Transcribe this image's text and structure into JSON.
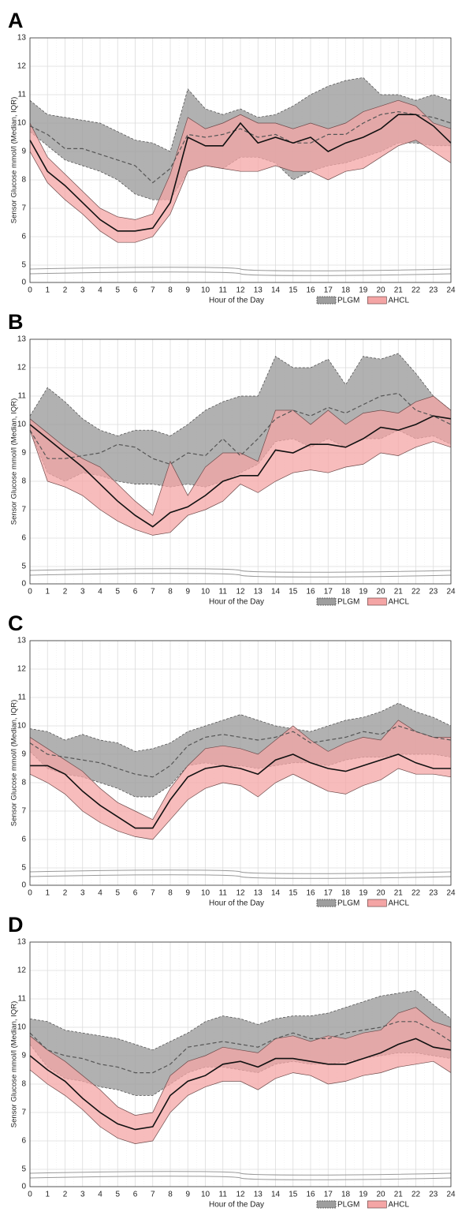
{
  "chart_data": [
    {
      "type": "line",
      "title": "A",
      "xlabel": "Hour of the Day",
      "ylabel": "Sensor Glucose mmol/l (Median, IQR)",
      "x": [
        0,
        1,
        2,
        3,
        4,
        5,
        6,
        7,
        8,
        9,
        10,
        11,
        12,
        13,
        14,
        15,
        16,
        17,
        18,
        19,
        20,
        21,
        22,
        23,
        24
      ],
      "xlim": [
        0,
        24
      ],
      "xticks": [
        0,
        1,
        2,
        3,
        4,
        5,
        6,
        7,
        8,
        9,
        10,
        11,
        12,
        13,
        14,
        15,
        16,
        17,
        18,
        19,
        20,
        21,
        22,
        23,
        24
      ],
      "ylim": [
        0,
        13
      ],
      "yticks": [
        0,
        5,
        6,
        7,
        8,
        9,
        10,
        11,
        12,
        13
      ],
      "broken_axis": true,
      "grid": true,
      "series": [
        {
          "name": "PLGM",
          "color": "#9e9e9e",
          "values": [
            9.9,
            9.6,
            9.1,
            9.1,
            8.9,
            8.7,
            8.5,
            7.9,
            8.4,
            9.6,
            9.5,
            9.6,
            9.8,
            9.5,
            9.6,
            9.3,
            9.3,
            9.6,
            9.6,
            10.0,
            10.3,
            10.4,
            10.3,
            10.2,
            10.0
          ],
          "lower": [
            9.7,
            9.2,
            8.7,
            8.5,
            8.3,
            8.0,
            7.5,
            7.3,
            7.3,
            8.3,
            8.5,
            8.4,
            8.8,
            8.8,
            8.6,
            8.0,
            8.3,
            8.5,
            8.6,
            8.8,
            9.0,
            9.3,
            9.3,
            9.2,
            9.2
          ],
          "upper": [
            10.8,
            10.3,
            10.2,
            10.1,
            10.0,
            9.7,
            9.4,
            9.3,
            9.0,
            11.2,
            10.5,
            10.3,
            10.5,
            10.2,
            10.3,
            10.6,
            11.0,
            11.3,
            11.5,
            11.6,
            11.0,
            11.0,
            10.8,
            11.0,
            10.8
          ]
        },
        {
          "name": "AHCL",
          "color": "#f4a5a5",
          "values": [
            9.4,
            8.3,
            7.8,
            7.2,
            6.6,
            6.2,
            6.2,
            6.3,
            7.2,
            9.5,
            9.2,
            9.2,
            10.0,
            9.3,
            9.5,
            9.3,
            9.5,
            9.0,
            9.3,
            9.5,
            9.8,
            10.3,
            10.3,
            9.9,
            9.3
          ],
          "lower": [
            9.0,
            7.9,
            7.3,
            6.8,
            6.2,
            5.8,
            5.8,
            6.0,
            6.8,
            8.3,
            8.5,
            8.4,
            8.3,
            8.3,
            8.5,
            8.3,
            8.3,
            8.0,
            8.3,
            8.4,
            8.8,
            9.2,
            9.4,
            9.0,
            8.6
          ],
          "upper": [
            10.0,
            8.8,
            8.2,
            7.6,
            7.0,
            6.7,
            6.6,
            6.8,
            8.2,
            10.2,
            9.8,
            10.0,
            10.3,
            10.0,
            10.0,
            9.8,
            10.0,
            9.8,
            10.0,
            10.4,
            10.6,
            10.8,
            10.6,
            10.0,
            9.8
          ]
        }
      ]
    },
    {
      "type": "line",
      "title": "B",
      "xlabel": "Hour of the Day",
      "ylabel": "Sensor Glucose mmol/l (Median, IQR)",
      "x": [
        0,
        1,
        2,
        3,
        4,
        5,
        6,
        7,
        8,
        9,
        10,
        11,
        12,
        13,
        14,
        15,
        16,
        17,
        18,
        19,
        20,
        21,
        22,
        23,
        24
      ],
      "xlim": [
        0,
        24
      ],
      "xticks": [
        0,
        1,
        2,
        3,
        4,
        5,
        6,
        7,
        8,
        9,
        10,
        11,
        12,
        13,
        14,
        15,
        16,
        17,
        18,
        19,
        20,
        21,
        22,
        23,
        24
      ],
      "ylim": [
        0,
        13
      ],
      "yticks": [
        0,
        5,
        6,
        7,
        8,
        9,
        10,
        11,
        12,
        13
      ],
      "broken_axis": true,
      "grid": true,
      "series": [
        {
          "name": "PLGM",
          "color": "#9e9e9e",
          "values": [
            9.8,
            8.8,
            8.8,
            8.9,
            9.0,
            9.3,
            9.2,
            8.8,
            8.6,
            9.0,
            8.9,
            9.5,
            8.9,
            9.5,
            10.2,
            10.5,
            10.3,
            10.6,
            10.4,
            10.7,
            11.0,
            11.1,
            10.5,
            10.3,
            10.0
          ],
          "lower": [
            9.8,
            8.3,
            8.0,
            8.3,
            8.2,
            8.0,
            7.9,
            7.9,
            7.8,
            7.9,
            7.8,
            8.0,
            8.3,
            8.6,
            9.4,
            9.5,
            9.2,
            9.5,
            9.2,
            9.5,
            9.5,
            9.8,
            9.5,
            9.6,
            9.3
          ],
          "upper": [
            10.3,
            11.3,
            10.8,
            10.2,
            9.8,
            9.6,
            9.8,
            9.8,
            9.6,
            10.0,
            10.5,
            10.8,
            11.0,
            11.0,
            12.4,
            12.0,
            12.0,
            12.3,
            11.4,
            12.4,
            12.3,
            12.5,
            11.8,
            11.0,
            10.5
          ]
        },
        {
          "name": "AHCL",
          "color": "#f4a5a5",
          "values": [
            10.0,
            9.5,
            9.0,
            8.5,
            7.9,
            7.3,
            6.8,
            6.4,
            6.9,
            7.1,
            7.5,
            8.0,
            8.2,
            8.2,
            9.1,
            9.0,
            9.3,
            9.3,
            9.2,
            9.5,
            9.9,
            9.8,
            10.0,
            10.3,
            10.2
          ],
          "lower": [
            9.8,
            8.0,
            7.8,
            7.5,
            7.0,
            6.6,
            6.3,
            6.1,
            6.2,
            6.8,
            7.0,
            7.3,
            7.9,
            7.6,
            8.0,
            8.3,
            8.4,
            8.3,
            8.5,
            8.6,
            9.0,
            8.9,
            9.2,
            9.4,
            9.2
          ],
          "upper": [
            10.2,
            9.7,
            9.2,
            8.8,
            8.5,
            7.9,
            7.3,
            6.8,
            8.7,
            7.5,
            8.5,
            9.0,
            9.0,
            8.7,
            10.5,
            10.5,
            10.0,
            10.5,
            10.0,
            10.4,
            10.5,
            10.4,
            10.8,
            11.0,
            10.5
          ]
        }
      ]
    },
    {
      "type": "line",
      "title": "C",
      "xlabel": "Hour of the Day",
      "ylabel": "Sensor Glucose mmol/l (Median, IQR)",
      "x": [
        0,
        1,
        2,
        3,
        4,
        5,
        6,
        7,
        8,
        9,
        10,
        11,
        12,
        13,
        14,
        15,
        16,
        17,
        18,
        19,
        20,
        21,
        22,
        23,
        24
      ],
      "xlim": [
        0,
        24
      ],
      "xticks": [
        0,
        1,
        2,
        3,
        4,
        5,
        6,
        7,
        8,
        9,
        10,
        11,
        12,
        13,
        14,
        15,
        16,
        17,
        18,
        19,
        20,
        21,
        22,
        23,
        24
      ],
      "ylim": [
        0,
        13
      ],
      "yticks": [
        0,
        5,
        6,
        7,
        8,
        9,
        10,
        11,
        12,
        13
      ],
      "broken_axis": true,
      "grid": true,
      "series": [
        {
          "name": "PLGM",
          "color": "#9e9e9e",
          "values": [
            9.4,
            9.0,
            8.9,
            8.8,
            8.7,
            8.5,
            8.3,
            8.2,
            8.6,
            9.3,
            9.6,
            9.7,
            9.6,
            9.5,
            9.6,
            9.8,
            9.4,
            9.5,
            9.6,
            9.8,
            9.7,
            10.0,
            9.8,
            9.6,
            9.5
          ],
          "lower": [
            9.1,
            8.5,
            8.3,
            8.2,
            8.0,
            7.8,
            7.5,
            7.5,
            7.9,
            8.6,
            8.7,
            8.6,
            8.6,
            8.5,
            8.6,
            8.7,
            8.7,
            8.6,
            8.8,
            8.9,
            8.9,
            9.0,
            9.0,
            9.0,
            8.9
          ],
          "upper": [
            9.9,
            9.8,
            9.5,
            9.7,
            9.5,
            9.4,
            9.1,
            9.2,
            9.4,
            9.8,
            10.0,
            10.2,
            10.4,
            10.2,
            10.0,
            9.9,
            9.8,
            10.0,
            10.2,
            10.3,
            10.5,
            10.8,
            10.5,
            10.3,
            10.0
          ]
        },
        {
          "name": "AHCL",
          "color": "#f4a5a5",
          "values": [
            8.6,
            8.6,
            8.3,
            7.7,
            7.2,
            6.8,
            6.4,
            6.4,
            7.4,
            8.2,
            8.5,
            8.6,
            8.5,
            8.3,
            8.8,
            9.0,
            8.7,
            8.5,
            8.4,
            8.6,
            8.8,
            9.0,
            8.7,
            8.5,
            8.5
          ],
          "lower": [
            8.3,
            8.0,
            7.6,
            7.0,
            6.6,
            6.3,
            6.1,
            6.0,
            6.7,
            7.4,
            7.8,
            8.0,
            7.9,
            7.5,
            8.0,
            8.3,
            8.0,
            7.7,
            7.6,
            7.9,
            8.1,
            8.5,
            8.3,
            8.3,
            8.2
          ],
          "upper": [
            9.6,
            9.2,
            8.8,
            8.4,
            7.8,
            7.3,
            7.0,
            6.7,
            7.8,
            8.6,
            9.2,
            9.3,
            9.2,
            9.0,
            9.5,
            10.0,
            9.5,
            9.1,
            9.4,
            9.6,
            9.5,
            10.2,
            9.8,
            9.6,
            9.6
          ]
        }
      ]
    },
    {
      "type": "line",
      "title": "D",
      "xlabel": "Hour of the Day",
      "ylabel": "Sensor Glucose mmol/l (Median, IQR)",
      "x": [
        0,
        1,
        2,
        3,
        4,
        5,
        6,
        7,
        8,
        9,
        10,
        11,
        12,
        13,
        14,
        15,
        16,
        17,
        18,
        19,
        20,
        21,
        22,
        23,
        24
      ],
      "xlim": [
        0,
        24
      ],
      "xticks": [
        0,
        1,
        2,
        3,
        4,
        5,
        6,
        7,
        8,
        9,
        10,
        11,
        12,
        13,
        14,
        15,
        16,
        17,
        18,
        19,
        20,
        21,
        22,
        23,
        24
      ],
      "ylim": [
        0,
        13
      ],
      "yticks": [
        0,
        5,
        6,
        7,
        8,
        9,
        10,
        11,
        12,
        13
      ],
      "broken_axis": true,
      "grid": true,
      "series": [
        {
          "name": "PLGM",
          "color": "#9e9e9e",
          "values": [
            9.8,
            9.2,
            9.0,
            8.9,
            8.7,
            8.6,
            8.4,
            8.4,
            8.7,
            9.3,
            9.4,
            9.5,
            9.4,
            9.3,
            9.6,
            9.8,
            9.6,
            9.6,
            9.8,
            9.9,
            10.0,
            10.2,
            10.2,
            9.9,
            9.5
          ],
          "lower": [
            9.4,
            8.6,
            8.2,
            8.1,
            7.9,
            7.8,
            7.6,
            7.6,
            8.0,
            8.4,
            8.6,
            8.6,
            8.5,
            8.4,
            8.7,
            8.8,
            8.7,
            8.7,
            8.8,
            8.9,
            9.0,
            9.1,
            9.1,
            9.0,
            8.9
          ],
          "upper": [
            10.3,
            10.2,
            9.9,
            9.8,
            9.7,
            9.6,
            9.4,
            9.2,
            9.5,
            9.8,
            10.2,
            10.4,
            10.3,
            10.1,
            10.3,
            10.4,
            10.4,
            10.5,
            10.7,
            10.9,
            11.1,
            11.2,
            11.3,
            10.8,
            10.3
          ]
        },
        {
          "name": "AHCL",
          "color": "#f4a5a5",
          "values": [
            9.0,
            8.5,
            8.1,
            7.5,
            7.0,
            6.6,
            6.4,
            6.5,
            7.6,
            8.1,
            8.3,
            8.7,
            8.8,
            8.6,
            8.9,
            8.9,
            8.8,
            8.7,
            8.7,
            8.9,
            9.1,
            9.4,
            9.6,
            9.3,
            9.2
          ],
          "lower": [
            8.5,
            8.0,
            7.6,
            7.1,
            6.5,
            6.1,
            5.9,
            6.0,
            7.0,
            7.6,
            7.9,
            8.1,
            8.1,
            7.8,
            8.2,
            8.4,
            8.3,
            8.0,
            8.1,
            8.3,
            8.4,
            8.6,
            8.7,
            8.8,
            8.4
          ],
          "upper": [
            9.7,
            9.2,
            8.8,
            8.3,
            7.8,
            7.2,
            6.9,
            7.0,
            8.3,
            8.8,
            9.0,
            9.3,
            9.2,
            9.1,
            9.6,
            9.7,
            9.5,
            9.7,
            9.6,
            9.8,
            9.9,
            10.5,
            10.7,
            10.2,
            10.0
          ]
        }
      ]
    }
  ]
}
